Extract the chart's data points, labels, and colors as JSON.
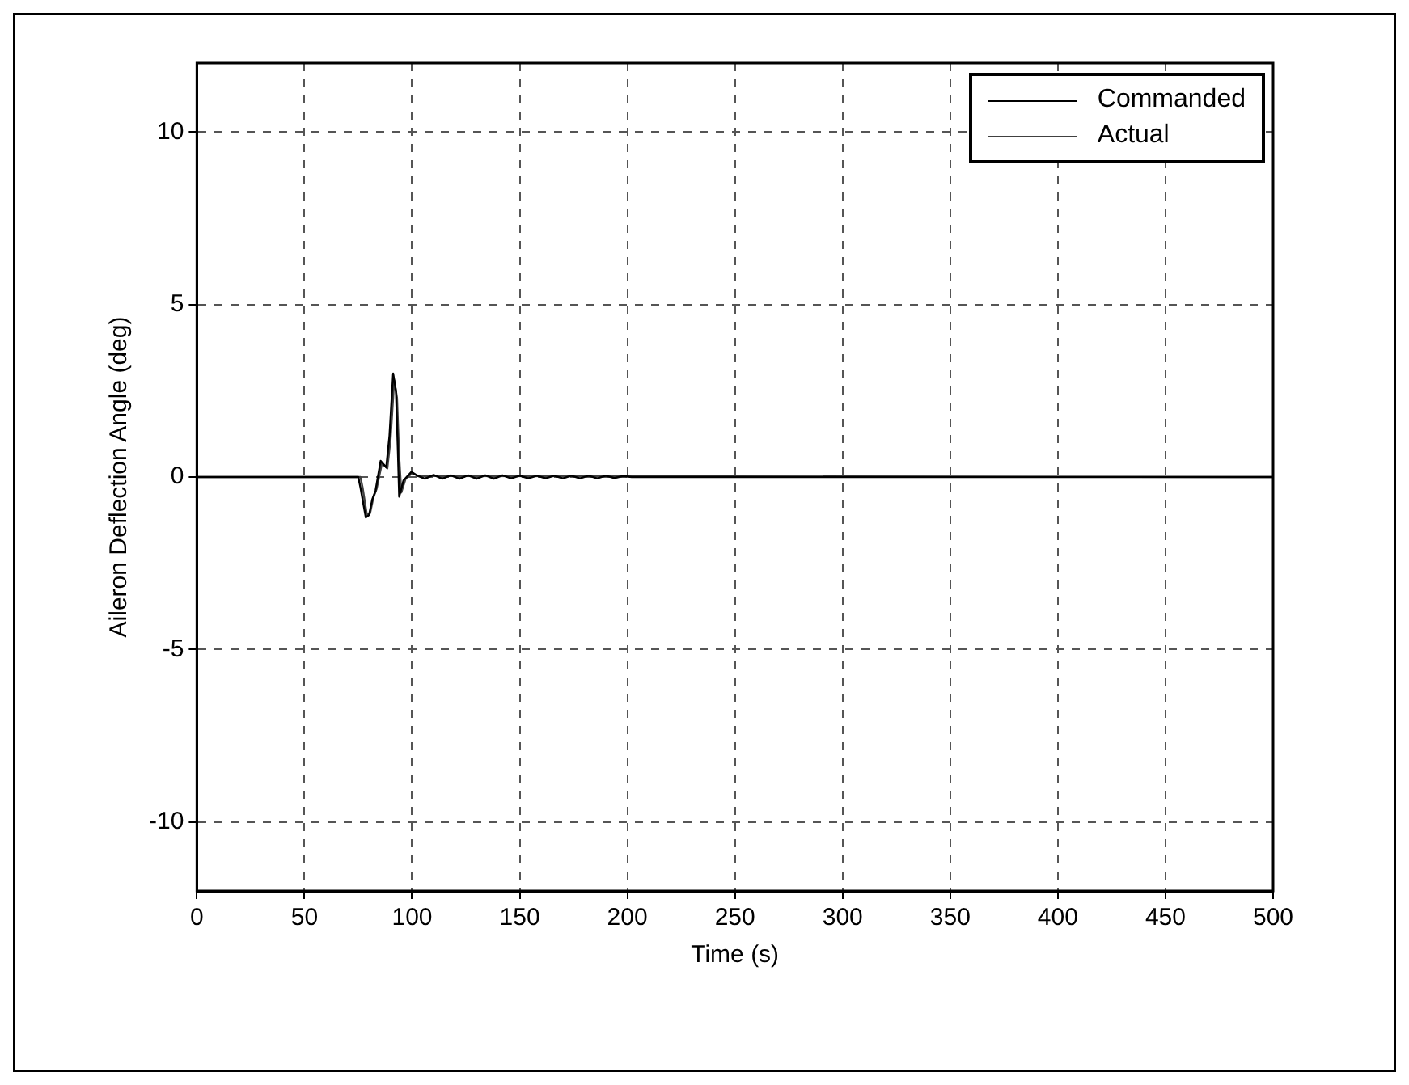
{
  "chart_data": {
    "type": "line",
    "xlabel": "Time (s)",
    "ylabel": "Aileron Deflection Angle (deg)",
    "xlim": [
      0,
      500
    ],
    "ylim": [
      -12,
      12
    ],
    "xticks": [
      0,
      50,
      100,
      150,
      200,
      250,
      300,
      350,
      400,
      450,
      500
    ],
    "yticks": [
      -10,
      -5,
      0,
      5,
      10
    ],
    "grid": true,
    "legend": "top right",
    "marker": "none",
    "line_style": "solid",
    "series": [
      {
        "name": "Commanded",
        "color": "#000000",
        "x": [
          0,
          75,
          76,
          78.5,
          80,
          81.5,
          83,
          85.4,
          88,
          89.5,
          91.2,
          92.5,
          93.4,
          94,
          96,
          99.7,
          102,
          106,
          110,
          114,
          118,
          122,
          126,
          130,
          134,
          138,
          142,
          146,
          150,
          154,
          158,
          162,
          166,
          170,
          174,
          178,
          182,
          186,
          190,
          194,
          198,
          202,
          500
        ],
        "values": [
          0,
          0,
          -0.3,
          -1.17,
          -1.1,
          -0.65,
          -0.4,
          0.47,
          0.28,
          1.2,
          3.0,
          2.5,
          0.75,
          -0.57,
          -0.1,
          0.15,
          0.05,
          -0.05,
          0.06,
          -0.05,
          0.05,
          -0.05,
          0.05,
          -0.05,
          0.05,
          -0.05,
          0.05,
          -0.04,
          0.04,
          -0.04,
          0.04,
          -0.04,
          0.04,
          -0.04,
          0.04,
          -0.04,
          0.04,
          -0.04,
          0.04,
          -0.03,
          0.03,
          0,
          0
        ]
      },
      {
        "name": "Actual",
        "color": "#404040",
        "x": [
          0,
          76,
          77,
          79,
          80.5,
          82,
          83.5,
          86,
          88.5,
          90,
          91.7,
          93,
          94,
          95,
          97,
          100.2,
          103,
          500
        ],
        "values": [
          0,
          0,
          -0.3,
          -1.1,
          -1.05,
          -0.6,
          -0.35,
          0.4,
          0.25,
          1.1,
          2.8,
          2.3,
          0.6,
          -0.45,
          -0.05,
          0.12,
          0.03,
          0
        ]
      }
    ]
  }
}
